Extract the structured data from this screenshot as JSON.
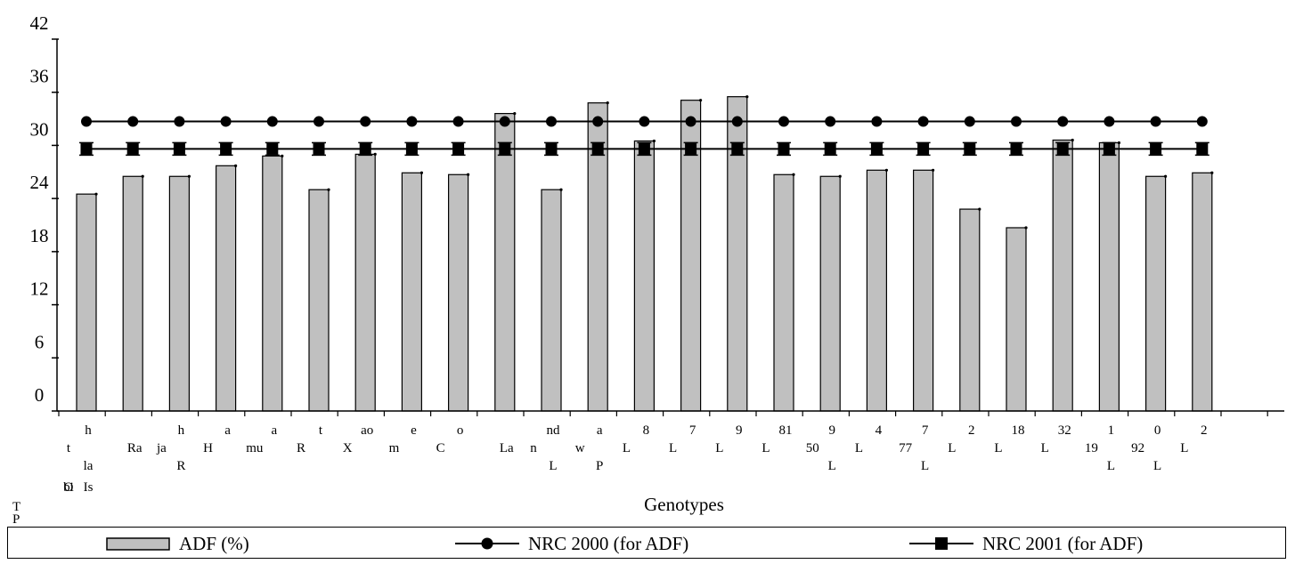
{
  "chart_data": {
    "type": "bar",
    "xlabel": "Genotypes",
    "ylabel": "",
    "ylim": [
      0,
      42
    ],
    "yticks": [
      "0",
      "6",
      "12",
      "18",
      "24",
      "30",
      "36",
      "42"
    ],
    "categories": [
      "h t la bi Is O",
      "Ra",
      "h ja R",
      "a H",
      "a mu",
      "t R",
      "ao X",
      "e m",
      "o C",
      "La",
      "nd n L",
      "a w P",
      "8 L",
      "7 L",
      "9 L",
      "81 L",
      "9 50 L",
      "4 L",
      "7 77 L",
      "2 L",
      "18 L",
      "32 L",
      "1 19 L",
      "0 92 L",
      "2 L"
    ],
    "series": [
      {
        "name": "ADF (%)",
        "kind": "bar",
        "color": "#c0c0c0",
        "values": [
          24.5,
          26.5,
          26.5,
          27.7,
          28.8,
          25.0,
          29.0,
          26.9,
          26.7,
          33.6,
          25.0,
          34.8,
          30.5,
          35.1,
          35.5,
          26.7,
          26.5,
          27.2,
          27.2,
          22.8,
          20.7,
          30.6,
          30.3,
          26.5,
          26.9
        ]
      },
      {
        "name": "NRC 2000 (for ADF)",
        "kind": "line",
        "marker": "circle",
        "values": [
          32.7,
          32.7,
          32.7,
          32.7,
          32.7,
          32.7,
          32.7,
          32.7,
          32.7,
          32.7,
          32.7,
          32.7,
          32.7,
          32.7,
          32.7,
          32.7,
          32.7,
          32.7,
          32.7,
          32.7,
          32.7,
          32.7,
          32.7,
          32.7,
          32.7
        ]
      },
      {
        "name": "NRC 2001 (for ADF)",
        "kind": "line",
        "marker": "square",
        "values": [
          29.6,
          29.6,
          29.6,
          29.6,
          29.6,
          29.6,
          29.6,
          29.6,
          29.6,
          29.6,
          29.6,
          29.6,
          29.6,
          29.6,
          29.6,
          29.6,
          29.6,
          29.6,
          29.6,
          29.6,
          29.6,
          29.6,
          29.6,
          29.6,
          29.6
        ]
      }
    ],
    "stray_labels": [
      "T",
      "P"
    ],
    "grid": false,
    "legend_position": "bottom"
  }
}
